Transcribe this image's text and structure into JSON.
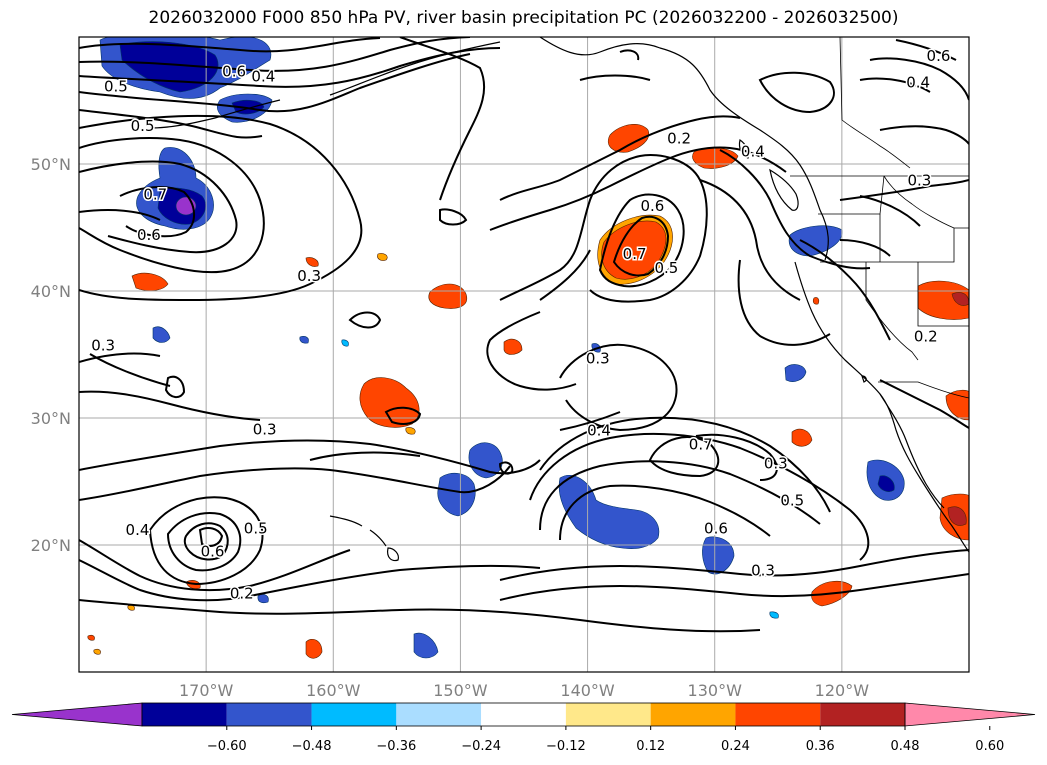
{
  "title": "2026032000 F000 850 hPa PV, river basin precipitation PC (2026032200 - 2026032500)",
  "map": {
    "lon_range": [
      -180,
      -110
    ],
    "lat_range": [
      10,
      60
    ],
    "lat_ticks": [
      {
        "value": 20,
        "label": "20°N"
      },
      {
        "value": 30,
        "label": "30°N"
      },
      {
        "value": 40,
        "label": "40°N"
      },
      {
        "value": 50,
        "label": "50°N"
      }
    ],
    "lon_ticks": [
      {
        "value": -170,
        "label": "170°W"
      },
      {
        "value": -160,
        "label": "160°W"
      },
      {
        "value": -150,
        "label": "150°W"
      },
      {
        "value": -140,
        "label": "140°W"
      },
      {
        "value": -130,
        "label": "130°W"
      },
      {
        "value": -120,
        "label": "120°W"
      }
    ],
    "grid": true,
    "pv_contour_labels": [
      {
        "text": "0.5",
        "lon": -177.1,
        "lat": 56.1
      },
      {
        "text": "0.5",
        "lon": -175.0,
        "lat": 53.0
      },
      {
        "text": "0.7",
        "lon": -174.0,
        "lat": 47.6
      },
      {
        "text": "0.6",
        "lon": -174.5,
        "lat": 44.4
      },
      {
        "text": "0.6",
        "lon": -167.8,
        "lat": 57.3
      },
      {
        "text": "0.4",
        "lon": -165.5,
        "lat": 56.9
      },
      {
        "text": "0.3",
        "lon": -161.9,
        "lat": 41.2
      },
      {
        "text": "0.3",
        "lon": -178.1,
        "lat": 35.7
      },
      {
        "text": "0.2",
        "lon": -132.8,
        "lat": 52.0
      },
      {
        "text": "0.6",
        "lon": -134.9,
        "lat": 46.7
      },
      {
        "text": "0.7",
        "lon": -136.3,
        "lat": 42.9
      },
      {
        "text": "0.5",
        "lon": -133.8,
        "lat": 41.8
      },
      {
        "text": "0.4",
        "lon": -127.0,
        "lat": 51.0
      },
      {
        "text": "0.3",
        "lon": -113.9,
        "lat": 48.7
      },
      {
        "text": "0.6",
        "lon": -112.4,
        "lat": 58.5
      },
      {
        "text": "0.4",
        "lon": -114.0,
        "lat": 56.4
      },
      {
        "text": "0.2",
        "lon": -113.4,
        "lat": 36.4
      },
      {
        "text": "0.3",
        "lon": -139.2,
        "lat": 34.7
      },
      {
        "text": "0.4",
        "lon": -139.1,
        "lat": 29.0
      },
      {
        "text": "0.7",
        "lon": -131.1,
        "lat": 27.9
      },
      {
        "text": "0.3",
        "lon": -125.2,
        "lat": 26.4
      },
      {
        "text": "0.5",
        "lon": -123.9,
        "lat": 23.5
      },
      {
        "text": "0.6",
        "lon": -129.9,
        "lat": 21.3
      },
      {
        "text": "0.3",
        "lon": -126.2,
        "lat": 18.0
      },
      {
        "text": "0.3",
        "lon": -165.4,
        "lat": 29.1
      },
      {
        "text": "0.4",
        "lon": -175.4,
        "lat": 21.2
      },
      {
        "text": "0.5",
        "lon": -166.1,
        "lat": 21.3
      },
      {
        "text": "0.6",
        "lon": -169.5,
        "lat": 19.5
      },
      {
        "text": "0.2",
        "lon": -167.2,
        "lat": 16.2
      }
    ]
  },
  "colorbar": {
    "ticks": [
      "−0.60",
      "−0.48",
      "−0.36",
      "−0.24",
      "−0.12",
      "0.12",
      "0.24",
      "0.36",
      "0.48",
      "0.60"
    ],
    "colors": [
      "#9933cc",
      "#000099",
      "#3355cc",
      "#00bbff",
      "#aaddff",
      "#ffffff",
      "#ffe88a",
      "#ffa500",
      "#ff4500",
      "#b22222",
      "#ff88aa"
    ]
  }
}
